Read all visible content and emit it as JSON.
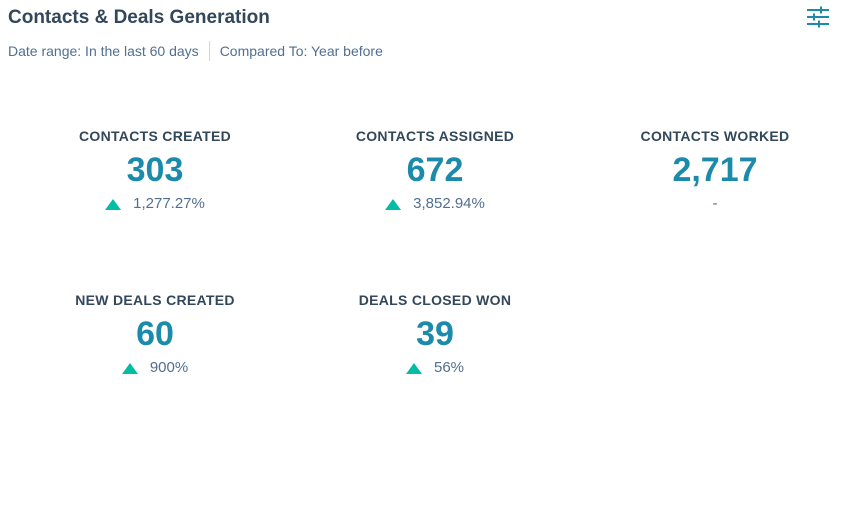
{
  "header": {
    "title": "Contacts & Deals Generation",
    "date_range": "Date range: In the last 60 days",
    "compared_to": "Compared To: Year before",
    "filter_icon": "sliders-icon"
  },
  "colors": {
    "value": "#1c8bab",
    "up_arrow": "#00bda5",
    "text": "#33475b",
    "muted": "#516f90"
  },
  "metrics": [
    {
      "label": "CONTACTS CREATED",
      "value": "303",
      "change": "1,277.27%",
      "trend": "up"
    },
    {
      "label": "CONTACTS ASSIGNED",
      "value": "672",
      "change": "3,852.94%",
      "trend": "up"
    },
    {
      "label": "CONTACTS WORKED",
      "value": "2,717",
      "change": "-",
      "trend": "none"
    },
    {
      "label": "NEW DEALS CREATED",
      "value": "60",
      "change": "900%",
      "trend": "up"
    },
    {
      "label": "DEALS CLOSED WON",
      "value": "39",
      "change": "56%",
      "trend": "up"
    }
  ]
}
